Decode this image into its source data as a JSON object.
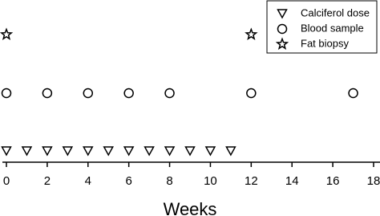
{
  "chart_data": {
    "type": "scatter",
    "xlabel": "Weeks",
    "xlim": [
      0,
      18
    ],
    "xticks": [
      0,
      2,
      4,
      6,
      8,
      10,
      12,
      14,
      16,
      18
    ],
    "legend": "upper right",
    "series": [
      {
        "name": "Calciferol dose",
        "color": "#000000",
        "marker": "triangle-down",
        "x": [
          0,
          1,
          2,
          3,
          4,
          5,
          6,
          7,
          8,
          9,
          10,
          11
        ]
      },
      {
        "name": "Blood sample",
        "color": "#000000",
        "marker": "circle",
        "x": [
          0,
          2,
          4,
          6,
          8,
          12,
          17
        ]
      },
      {
        "name": "Fat biopsy",
        "color": "#000000",
        "marker": "star",
        "x": [
          0,
          12
        ]
      }
    ]
  }
}
